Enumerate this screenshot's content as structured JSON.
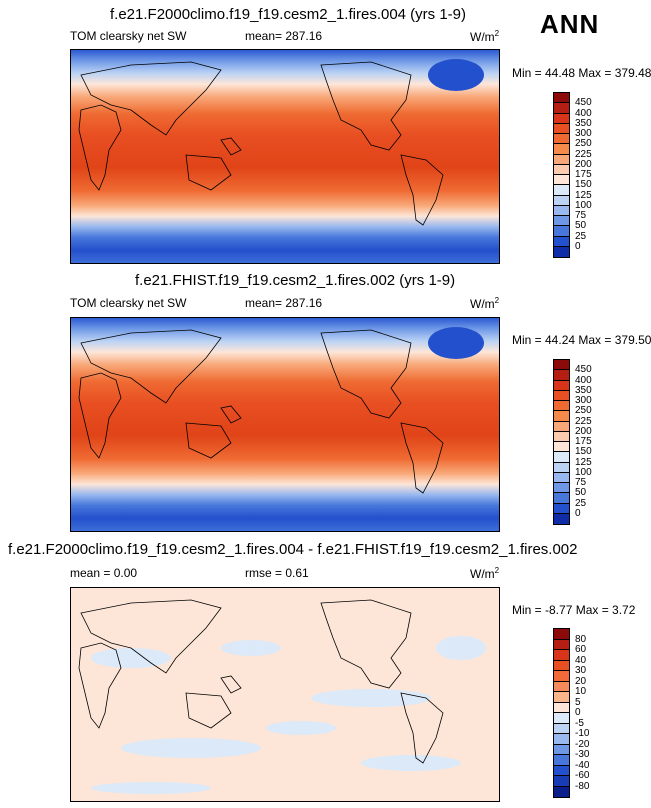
{
  "header_label": "ANN",
  "units": "W/m",
  "units_exp": "2",
  "panels": [
    {
      "title": "f.e21.F2000climo.f19_f19.cesm2_1.fires.004 (yrs 1-9)",
      "left_label": "TOM clearsky net SW",
      "mean_label": "mean= 287.16",
      "minmax": "Min = 44.48 Max = 379.48",
      "cbar_ticks": [
        "450",
        "400",
        "350",
        "300",
        "250",
        "225",
        "200",
        "175",
        "150",
        "125",
        "100",
        "75",
        "50",
        "25",
        "0"
      ]
    },
    {
      "title": "f.e21.FHIST.f19_f19.cesm2_1.fires.002 (yrs 1-9)",
      "left_label": "TOM clearsky net SW",
      "mean_label": "mean= 287.16",
      "minmax": "Min = 44.24 Max = 379.50",
      "cbar_ticks": [
        "450",
        "400",
        "350",
        "300",
        "250",
        "225",
        "200",
        "175",
        "150",
        "125",
        "100",
        "75",
        "50",
        "25",
        "0"
      ]
    },
    {
      "title": "f.e21.F2000climo.f19_f19.cesm2_1.fires.004 - f.e21.FHIST.f19_f19.cesm2_1.fires.002",
      "left_label": "mean =   0.00",
      "mean_label": "rmse =   0.61",
      "minmax": "Min = -8.77 Max =   3.72",
      "cbar_ticks": [
        "80",
        "60",
        "40",
        "30",
        "20",
        "10",
        "5",
        "0",
        "-5",
        "-10",
        "-20",
        "-30",
        "-40",
        "-60",
        "-80"
      ]
    }
  ],
  "colors": {
    "seq": [
      "#8c0a0a",
      "#b51e12",
      "#d8341a",
      "#e84f22",
      "#ef6a32",
      "#f58a4b",
      "#f8a878",
      "#fbcbb0",
      "#fde6d8",
      "#dce9f8",
      "#bcd3f4",
      "#98b8ef",
      "#6e98e6",
      "#4877dc",
      "#2350cc",
      "#0f2da6"
    ],
    "div": [
      "#8c0a0a",
      "#b51e12",
      "#d8341a",
      "#e84f22",
      "#f26a3a",
      "#f58a5a",
      "#fab58a",
      "#fde6d8",
      "#dce9f8",
      "#bcd3f4",
      "#98b8ef",
      "#6e98e6",
      "#4877dc",
      "#2350cc",
      "#173cb4",
      "#0a1f8c"
    ]
  },
  "chart_data": [
    {
      "type": "heatmap",
      "title": "f.e21.F2000climo.f19_f19.cesm2_1.fires.004 (yrs 1-9)",
      "variable": "TOM clearsky net SW",
      "units": "W/m2",
      "mean": 287.16,
      "min": 44.48,
      "max": 379.48,
      "levels": [
        0,
        25,
        50,
        75,
        100,
        125,
        150,
        175,
        200,
        225,
        250,
        300,
        350,
        400,
        450
      ]
    },
    {
      "type": "heatmap",
      "title": "f.e21.FHIST.f19_f19.cesm2_1.fires.002 (yrs 1-9)",
      "variable": "TOM clearsky net SW",
      "units": "W/m2",
      "mean": 287.16,
      "min": 44.24,
      "max": 379.5,
      "levels": [
        0,
        25,
        50,
        75,
        100,
        125,
        150,
        175,
        200,
        225,
        250,
        300,
        350,
        400,
        450
      ]
    },
    {
      "type": "heatmap",
      "title": "f.e21.F2000climo.f19_f19.cesm2_1.fires.004 - f.e21.FHIST.f19_f19.cesm2_1.fires.002",
      "units": "W/m2",
      "mean": 0.0,
      "rmse": 0.61,
      "min": -8.77,
      "max": 3.72,
      "levels": [
        -80,
        -60,
        -40,
        -30,
        -20,
        -10,
        -5,
        0,
        5,
        10,
        20,
        30,
        40,
        60,
        80
      ]
    }
  ]
}
